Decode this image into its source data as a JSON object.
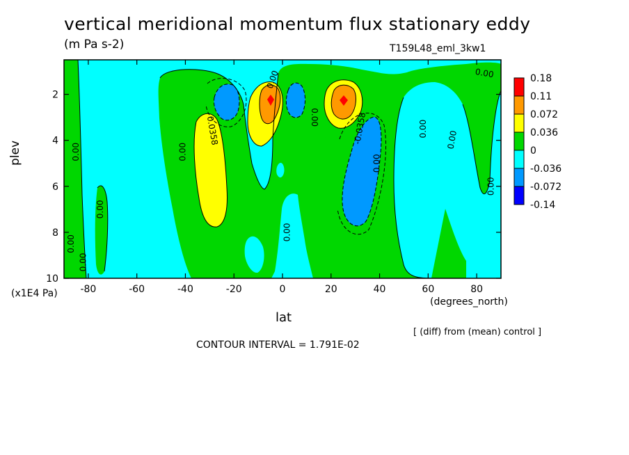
{
  "title": "vertical meridional momentum flux stationary eddy",
  "units": "(m Pa s-2)",
  "run_id": "T159L48_eml_3kw1",
  "y_label": "plev",
  "y_units": "(x1E4 Pa)",
  "x_label": "lat",
  "x_units": "(degrees_north)",
  "diff_note": "[ (diff) from (mean) control ]",
  "contour_interval": "CONTOUR INTERVAL = 1.791E-02",
  "chart_data": {
    "type": "heatmap",
    "title": "vertical meridional momentum flux stationary eddy",
    "xlabel": "lat",
    "ylabel": "plev",
    "xlim": [
      -90,
      90
    ],
    "ylim": [
      10,
      0.5
    ],
    "x_ticks": [
      -80,
      -60,
      -40,
      -20,
      0,
      20,
      40,
      60,
      80
    ],
    "y_ticks": [
      2,
      4,
      6,
      8,
      10
    ],
    "colorbar": {
      "labels": [
        "0.18",
        "0.11",
        "0.072",
        "0.036",
        "0",
        "-0.036",
        "-0.072",
        "-0.14"
      ],
      "colors": [
        "#ff0000",
        "#ff9900",
        "#ffff00",
        "#00d700",
        "#00ffff",
        "#0099ff",
        "#0000ff"
      ]
    },
    "features": [
      {
        "kind": "max",
        "lat": -30,
        "plev": 5.0,
        "value": 0.054,
        "band": "0.036 to 0.072"
      },
      {
        "kind": "max",
        "lat": -5,
        "plev": 2.0,
        "value": 0.18,
        "band": "0.11 to 0.18"
      },
      {
        "kind": "max",
        "lat": 25,
        "plev": 2.0,
        "value": 0.18,
        "band": "0.11 to 0.18"
      },
      {
        "kind": "min",
        "lat": -24,
        "plev": 2.0,
        "value": -0.08,
        "band": "-0.072 to -0.14"
      },
      {
        "kind": "min",
        "lat": 5,
        "plev": 2.0,
        "value": -0.08,
        "band": "-0.072 to -0.14"
      },
      {
        "kind": "min",
        "lat": 30,
        "plev": 5.5,
        "value": -0.06,
        "band": "-0.036 to -0.072"
      }
    ],
    "contour_labels": [
      "0.00",
      "0.0358",
      "-0.0358"
    ]
  }
}
